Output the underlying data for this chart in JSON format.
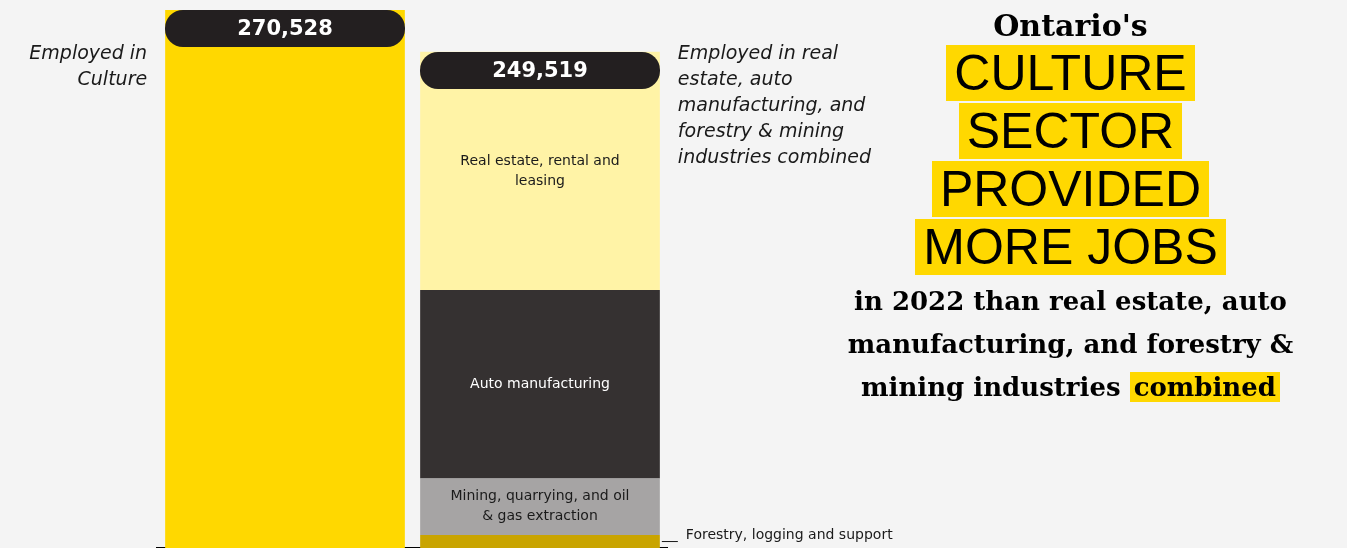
{
  "chart_data": {
    "type": "bar",
    "stacked": true,
    "title": "Ontario's CULTURE SECTOR PROVIDED MORE JOBS",
    "subtitle": "in 2022 than real estate, auto manufacturing, and forestry & mining industries combined",
    "categories": [
      "Employed in Culture",
      "Employed in real estate, auto manufacturing, and forestry & mining industries combined"
    ],
    "series": [
      {
        "color": "#ffd800",
        "values": [
          270528,
          null
        ],
        "value_labels": [
          "270,528",
          null
        ]
      },
      {
        "name": "Forestry, logging and support",
        "color": "#c9a400",
        "values": [
          null,
          6500
        ]
      },
      {
        "name": "Mining, quarrying, and oil & gas extraction",
        "color": "#a6a4a4",
        "values": [
          null,
          28400
        ]
      },
      {
        "name": "Auto manufacturing",
        "color": "#353131",
        "values": [
          null,
          94800
        ]
      },
      {
        "name": "Real estate, rental and leasing",
        "color": "#fff3a6",
        "values": [
          null,
          119819
        ]
      }
    ],
    "totals": [
      null,
      "249,519"
    ],
    "legend": false,
    "grid": false
  }
}
